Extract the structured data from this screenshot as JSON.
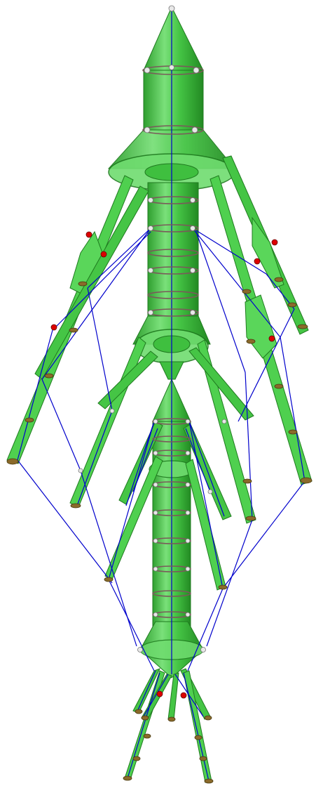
{
  "figure": {
    "subject": "structural-model",
    "colors": {
      "background": "#ffffff",
      "member_fill": "#4fd04f",
      "member_dark": "#2ea02e",
      "member_edge": "#1f7a1f",
      "cable": "#0000cc",
      "ring": "#7a5a5a",
      "node": "#e0e0e0",
      "node_red": "#dd0000",
      "node_brown": "#8a6a2a"
    }
  }
}
